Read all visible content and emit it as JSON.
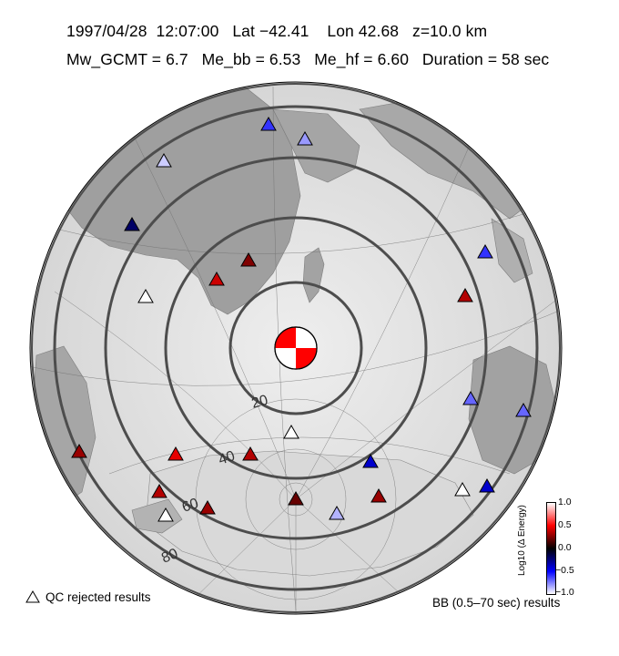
{
  "header": {
    "line1": "1997/04/28  12:07:00   Lat −42.41    Lon 42.68   z=10.0 km",
    "line2": "Mw_GCMT = 6.7   Me_bb = 6.53   Me_hf = 6.60   Duration = 58 sec"
  },
  "map": {
    "center": {
      "lat": -42.41,
      "lon": 42.68
    },
    "distance_rings_deg": [
      10,
      20,
      30,
      40,
      50,
      60,
      70,
      80,
      90
    ],
    "ring_labels": [
      "20",
      "40",
      "60",
      "80"
    ],
    "colors": {
      "ring": "#505050",
      "land": "#9a9a9a",
      "ocean": "#e6e6e6",
      "beachball": "#ff0000"
    }
  },
  "legend": {
    "qc_rejected": "QC rejected results",
    "bb_caption": "BB (0.5–70 sec) results",
    "colorbar_label": "Log10 (Δ Energy)",
    "colorbar_ticks": [
      "1.0",
      "0.5",
      "0.0",
      "−0.5",
      "−1.0"
    ],
    "colorbar_range": [
      -1.0,
      1.0
    ]
  },
  "stations": [
    {
      "value": -0.6
    },
    {
      "value": -0.8
    },
    {
      "value": -0.9
    },
    {
      "value": -0.2
    },
    {
      "value": 0.25
    },
    {
      "value": 0.4
    },
    {
      "value": null
    },
    {
      "value": -0.6
    },
    {
      "value": 0.35
    },
    {
      "value": -0.7
    },
    {
      "value": -0.7
    },
    {
      "value": null
    },
    {
      "value": 0.45
    },
    {
      "value": 0.35
    },
    {
      "value": -0.4
    },
    {
      "value": 0.3
    },
    {
      "value": 0.35
    },
    {
      "value": 0.3
    },
    {
      "value": null
    },
    {
      "value": -0.85
    },
    {
      "value": 0.2
    },
    {
      "value": 0.3
    },
    {
      "value": -0.4
    },
    {
      "value": null
    }
  ]
}
